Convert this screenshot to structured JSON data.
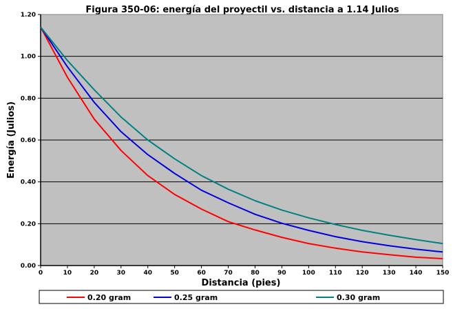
{
  "chart_data": {
    "type": "line",
    "title": "Figura 350-06: energía del proyectil vs. distancia a 1.14 Julios",
    "xlabel": "Distancia (pies)",
    "ylabel": "Energía (Julios)",
    "xlim": [
      0,
      150
    ],
    "ylim": [
      0,
      1.2
    ],
    "x_ticks": [
      0,
      10,
      20,
      30,
      40,
      50,
      60,
      70,
      80,
      90,
      100,
      110,
      120,
      130,
      140,
      150
    ],
    "x_tick_labels": [
      "0",
      "10",
      "20",
      "30",
      "40",
      "50",
      "60",
      "70",
      "80",
      "90",
      "100",
      "110",
      "120",
      "130",
      "140",
      "150"
    ],
    "y_ticks": [
      0,
      0.2,
      0.4,
      0.6,
      0.8,
      1.0,
      1.2
    ],
    "y_tick_labels": [
      "0.00",
      "0.20",
      "0.40",
      "0.60",
      "0.80",
      "1.00",
      "1.20"
    ],
    "grid": "horizontal",
    "plot_background": "#c0c0c0",
    "legend_position": "bottom",
    "x": [
      0,
      10,
      20,
      30,
      40,
      50,
      60,
      70,
      80,
      90,
      100,
      110,
      120,
      130,
      140,
      150
    ],
    "series": [
      {
        "name": "0.20 gram",
        "color": "#ff0000",
        "values": [
          1.14,
          0.9,
          0.7,
          0.55,
          0.43,
          0.34,
          0.27,
          0.21,
          0.17,
          0.135,
          0.105,
          0.083,
          0.065,
          0.052,
          0.04,
          0.033
        ]
      },
      {
        "name": "0.25 gram",
        "color": "#0000dd",
        "values": [
          1.14,
          0.95,
          0.78,
          0.64,
          0.53,
          0.44,
          0.36,
          0.3,
          0.245,
          0.202,
          0.168,
          0.138,
          0.114,
          0.095,
          0.078,
          0.065
        ]
      },
      {
        "name": "0.30 gram",
        "color": "#008080",
        "values": [
          1.14,
          0.98,
          0.84,
          0.71,
          0.6,
          0.51,
          0.43,
          0.365,
          0.31,
          0.265,
          0.228,
          0.196,
          0.168,
          0.145,
          0.124,
          0.105
        ]
      }
    ]
  }
}
